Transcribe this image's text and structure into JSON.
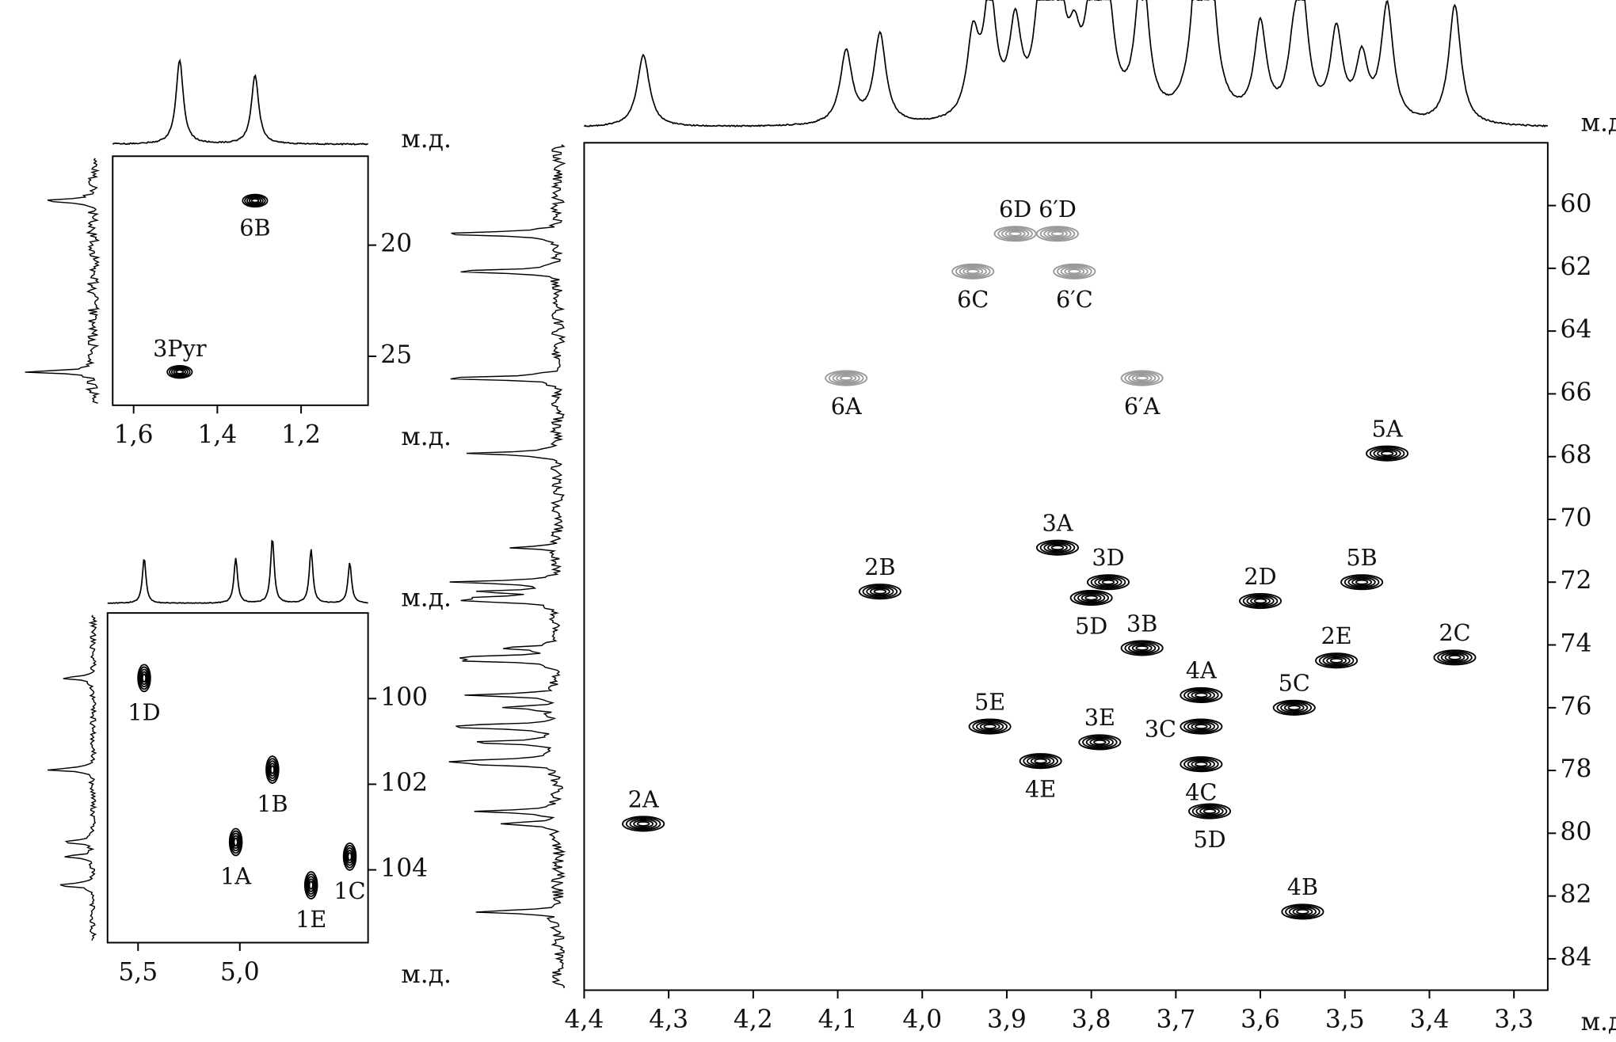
{
  "chart_data": [
    {
      "type": "scatter",
      "xlabel": "м.д.",
      "xlim": [
        4.4,
        3.26
      ],
      "ylim": [
        58,
        85
      ],
      "xticks": [
        {
          "value": 4.4,
          "label": "4,4"
        },
        {
          "value": 4.3,
          "label": "4,3"
        },
        {
          "value": 4.2,
          "label": "4,2"
        },
        {
          "value": 4.1,
          "label": "4,1"
        },
        {
          "value": 4.0,
          "label": "4,0"
        },
        {
          "value": 3.9,
          "label": "3,9"
        },
        {
          "value": 3.8,
          "label": "3,8"
        },
        {
          "value": 3.7,
          "label": "3,7"
        },
        {
          "value": 3.6,
          "label": "3,6"
        },
        {
          "value": 3.5,
          "label": "3,5"
        },
        {
          "value": 3.4,
          "label": "3,4"
        },
        {
          "value": 3.3,
          "label": "3,3"
        }
      ],
      "yticks": [
        60,
        62,
        64,
        66,
        68,
        70,
        72,
        74,
        76,
        78,
        80,
        82,
        84
      ],
      "series": [
        {
          "color": "#000000",
          "x": [
            3.45,
            3.84,
            4.05,
            3.78,
            3.8,
            3.6,
            3.48,
            3.74,
            3.51,
            3.37,
            3.67,
            3.56,
            3.92,
            3.79,
            3.67,
            3.86,
            3.67,
            3.66,
            4.33,
            3.55
          ],
          "values": [
            67.9,
            70.9,
            72.3,
            72.0,
            72.5,
            72.6,
            72.0,
            74.1,
            74.5,
            74.4,
            75.6,
            76.0,
            76.6,
            77.1,
            76.6,
            77.7,
            77.8,
            79.3,
            79.7,
            82.5
          ],
          "labels": [
            "5A",
            "3A",
            "2B",
            "3D",
            "5D",
            "2D",
            "5B",
            "3B",
            "2E",
            "2C",
            "4A",
            "5C",
            "5E",
            "3E",
            "3C",
            "4E",
            "4C",
            "5D",
            "2A",
            "4B"
          ]
        },
        {
          "color": "#999999",
          "x": [
            3.89,
            3.84,
            3.94,
            3.82,
            4.09,
            3.74
          ],
          "values": [
            60.9,
            60.9,
            62.1,
            62.1,
            65.5,
            65.5
          ],
          "labels": [
            "6D",
            "6′D",
            "6C",
            "6′C",
            "6A",
            "6′A"
          ]
        }
      ]
    },
    {
      "type": "scatter",
      "xlabel": "м.д.",
      "xlim": [
        1.65,
        1.04
      ],
      "ylim": [
        16,
        27.2
      ],
      "xticks": [
        {
          "value": 1.6,
          "label": "1,6"
        },
        {
          "value": 1.4,
          "label": "1,4"
        },
        {
          "value": 1.2,
          "label": "1,2"
        }
      ],
      "yticks": [
        20,
        25
      ],
      "series": [
        {
          "color": "#000000",
          "x": [
            1.31,
            1.49
          ],
          "values": [
            18.0,
            25.7
          ],
          "labels": [
            "6B",
            "3Pyr"
          ]
        }
      ]
    },
    {
      "type": "scatter",
      "xlabel": "м.д.",
      "xlim": [
        5.65,
        4.37
      ],
      "ylim": [
        98,
        105.7
      ],
      "xticks": [
        {
          "value": 5.5,
          "label": "5,5"
        },
        {
          "value": 5.0,
          "label": "5,0"
        }
      ],
      "yticks": [
        100,
        102,
        104
      ],
      "series": [
        {
          "color": "#000000",
          "x": [
            5.47,
            4.84,
            5.02,
            4.65,
            4.46
          ],
          "values": [
            99.52,
            101.66,
            103.35,
            104.36,
            103.69
          ],
          "labels": [
            "1D",
            "1B",
            "1A",
            "1E",
            "1C"
          ]
        }
      ]
    }
  ]
}
